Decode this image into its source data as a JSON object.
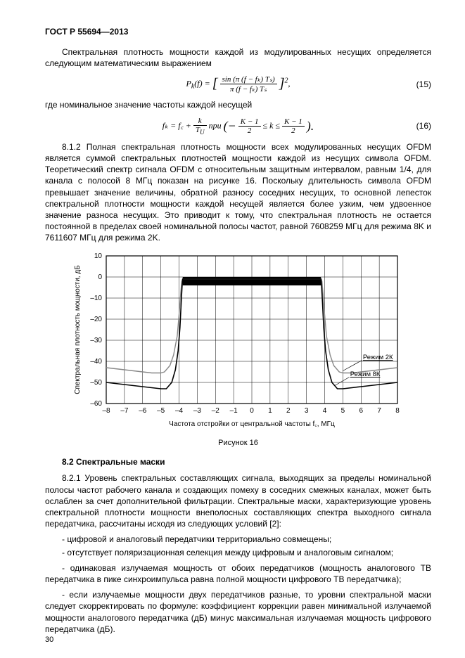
{
  "header": "ГОСТ Р 55694—2013",
  "para_intro": "Спектральная плотность мощности каждой из модулированных несущих определяется следующим математическим выражением",
  "eq15": {
    "lhs": "P",
    "sub1": "k",
    "arg": "(f) =",
    "num": "sin (π (f − fₖ) Tₛ)",
    "den": "π (f − fₖ) Tₛ",
    "sq": "2",
    "comma": ",",
    "num_label": "(15)"
  },
  "para_where": "где номинальное значение частоты каждой несущей",
  "eq16": {
    "lhs": "fₖ = f꜀ +",
    "num1": "k",
    "den1": "T",
    "den1sub": "U",
    "mid": " при ",
    "lb": "(−",
    "num2": "K − 1",
    "den2": "2",
    "mid2": " ≤ k ≤ ",
    "num3": "K − 1",
    "den3": "2",
    "rb": ").",
    "num_label": "(16)"
  },
  "para_812": "8.1.2  Полная спектральная плотность мощности всех модулированных несущих OFDM является суммой спектральных плотностей мощности каждой из несущих символа OFDM. Теоретический спектр сигнала OFDM с относительным защитным интервалом, равным 1/4, для канала с полосой 8 МГц показан на рисунке 16. Поскольку длительность символа OFDM превышает значение величины, обратной разносу соседних несущих, то основной лепесток спектральной плотности мощности каждой несущей является более узким, чем удвоенное значение разноса несущих. Это приводит к тому, что спектральная плотность не остается постоянной в пределах своей номинальной полосы частот, равной 7608259 МГц для режима 8K и 7611607 МГц для режима 2K.",
  "chart": {
    "ylabel": "Спектральная плотность мощности, дБ",
    "xlabel": "Частота отстройки от центральной частоты f꜀, МГц",
    "label_2k": "Режим 2К",
    "label_8k": "Режим 8К",
    "xticks": [
      "–8",
      "–7",
      "–6",
      "–5",
      "–4",
      "–3",
      "–2",
      "–1",
      "0",
      "1",
      "2",
      "3",
      "4",
      "5",
      "6",
      "7",
      "8"
    ],
    "yticks": [
      "10",
      "0",
      "–10",
      "–20",
      "–30",
      "–40",
      "–50",
      "–60"
    ],
    "xlim": [
      -8,
      8
    ],
    "ylim": [
      -60,
      10
    ],
    "grid_color": "#000000",
    "bg_color": "#ffffff",
    "line_color_2k": "#888888",
    "line_color_8k": "#000000",
    "top_band_color": "#000000",
    "series_2k": [
      [
        -8,
        -43
      ],
      [
        -7.5,
        -43.5
      ],
      [
        -7,
        -44
      ],
      [
        -6.5,
        -44.5
      ],
      [
        -6,
        -45
      ],
      [
        -5.5,
        -45.5
      ],
      [
        -5,
        -45.5
      ],
      [
        -4.8,
        -45
      ],
      [
        -4.5,
        -42
      ],
      [
        -4.3,
        -37
      ],
      [
        -4.1,
        -28
      ],
      [
        -4.0,
        -18
      ],
      [
        -3.9,
        -7
      ],
      [
        -3.85,
        -2
      ],
      [
        -3.8,
        -1
      ],
      [
        -3.5,
        -1
      ],
      [
        3.5,
        -1
      ],
      [
        3.8,
        -1
      ],
      [
        3.85,
        -2
      ],
      [
        3.9,
        -7
      ],
      [
        4.0,
        -18
      ],
      [
        4.1,
        -28
      ],
      [
        4.3,
        -37
      ],
      [
        4.5,
        -42
      ],
      [
        4.8,
        -45
      ],
      [
        5,
        -45.5
      ],
      [
        5.5,
        -45.5
      ],
      [
        6,
        -45
      ],
      [
        6.5,
        -44.5
      ],
      [
        7,
        -44
      ],
      [
        7.5,
        -43.5
      ],
      [
        8,
        -43
      ]
    ],
    "series_8k": [
      [
        -8,
        -50
      ],
      [
        -7.5,
        -50.5
      ],
      [
        -7,
        -51
      ],
      [
        -6.5,
        -51.5
      ],
      [
        -6,
        -52
      ],
      [
        -5.5,
        -52.5
      ],
      [
        -5,
        -53
      ],
      [
        -4.7,
        -53
      ],
      [
        -4.4,
        -50
      ],
      [
        -4.2,
        -44
      ],
      [
        -4.05,
        -35
      ],
      [
        -3.95,
        -24
      ],
      [
        -3.88,
        -12
      ],
      [
        -3.83,
        -4
      ],
      [
        -3.8,
        -1
      ],
      [
        -3.5,
        -1
      ],
      [
        3.5,
        -1
      ],
      [
        3.8,
        -1
      ],
      [
        3.83,
        -4
      ],
      [
        3.88,
        -12
      ],
      [
        3.95,
        -24
      ],
      [
        4.05,
        -35
      ],
      [
        4.2,
        -44
      ],
      [
        4.4,
        -50
      ],
      [
        4.7,
        -53
      ],
      [
        5,
        -53
      ],
      [
        5.5,
        -52.5
      ],
      [
        6,
        -52
      ],
      [
        6.5,
        -51.5
      ],
      [
        7,
        -51
      ],
      [
        7.5,
        -50.5
      ],
      [
        8,
        -50
      ]
    ]
  },
  "fig_caption": "Рисунок 16",
  "section_82": "8.2  Спектральные маски",
  "para_821": "8.2.1  Уровень спектральных составляющих сигнала, выходящих за пределы номинальной полосы частот рабочего канала и создающих помеху в соседних смежных каналах, может быть ослаблен за счет дополнительной фильтрации. Спектральные маски, характеризующие уровень спектральной плотности мощности внеполосных составляющих спектра выходного сигнала передатчика, рассчитаны исходя из следующих условий [2]:",
  "bullets": {
    "b1": "-  цифровой и аналоговый передатчики территориально совмещены;",
    "b2": "-  отсутствует поляризационная селекция между цифровым и аналоговым сигналом;",
    "b3": "-  одинаковая излучаемая мощность от обоих передатчиков (мощность аналогового ТВ передатчика в пике синхроимпульса равна полной мощности цифрового ТВ передатчика);",
    "b4": "-  если излучаемые мощности двух передатчиков разные, то уровни спектральной маски следует скорректировать по формуле: коэффициент коррекции равен минимальной излучаемой мощности аналогового передатчика (дБ) минус максимальная излучаемая мощность цифрового передатчика (дБ)."
  },
  "page_number": "30"
}
